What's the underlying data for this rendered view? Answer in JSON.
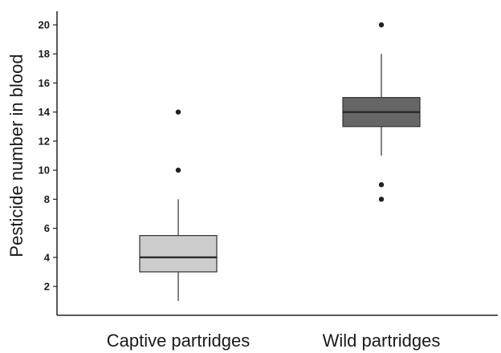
{
  "chart_data": {
    "type": "boxplot",
    "title": "",
    "xlabel": "",
    "ylabel": "Pesticide number in blood",
    "ylim": [
      0,
      21
    ],
    "yticks": [
      2,
      4,
      6,
      8,
      10,
      12,
      14,
      16,
      18,
      20
    ],
    "grid": false,
    "legend": "none",
    "categories": [
      "Captive partridges",
      "Wild partridges"
    ],
    "boxes": [
      {
        "category": "Captive partridges",
        "whisker_low": 1,
        "q1": 3,
        "median": 4,
        "q3": 5.5,
        "whisker_high": 8,
        "outliers": [
          10,
          14
        ],
        "fill": "#cccccc"
      },
      {
        "category": "Wild partridges",
        "whisker_low": 11,
        "q1": 13,
        "median": 14,
        "q3": 15,
        "whisker_high": 18,
        "outliers": [
          8,
          9,
          20
        ],
        "fill": "#666666"
      }
    ]
  }
}
